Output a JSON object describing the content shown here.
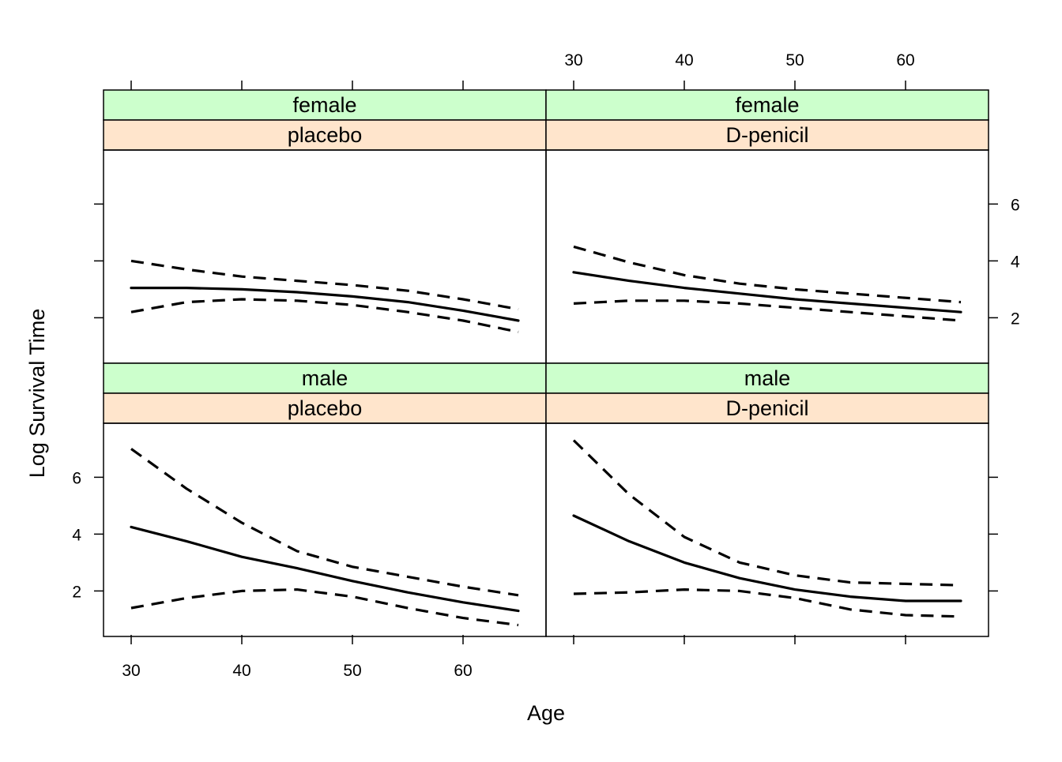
{
  "chart_data": {
    "type": "line",
    "layout": "lattice 2x2",
    "xlabel": "Age",
    "ylabel": "Log Survival Time",
    "xlim": [
      27.5,
      67.5
    ],
    "ylim": [
      0.4,
      7.9
    ],
    "x_ticks": [
      30,
      40,
      50,
      60
    ],
    "y_ticks": [
      2,
      4,
      6
    ],
    "colors": {
      "strip_sex": "#ccffcc",
      "strip_drug": "#ffe5cc",
      "line": "#000000",
      "frame": "#000000"
    },
    "panels": [
      {
        "sex": "female",
        "drug": "placebo",
        "series": [
          {
            "style": "solid",
            "x": [
              30,
              35,
              40,
              45,
              50,
              55,
              60,
              65
            ],
            "y": [
              3.05,
              3.05,
              3.0,
              2.9,
              2.75,
              2.55,
              2.25,
              1.9
            ]
          },
          {
            "style": "dashed",
            "x": [
              30,
              35,
              40,
              45,
              50,
              55,
              60,
              65
            ],
            "y": [
              4.0,
              3.7,
              3.45,
              3.3,
              3.15,
              2.95,
              2.65,
              2.3
            ]
          },
          {
            "style": "dashed",
            "x": [
              30,
              35,
              40,
              45,
              50,
              55,
              60,
              65
            ],
            "y": [
              2.2,
              2.55,
              2.65,
              2.6,
              2.45,
              2.2,
              1.9,
              1.5
            ]
          }
        ]
      },
      {
        "sex": "female",
        "drug": "D-penicil",
        "series": [
          {
            "style": "solid",
            "x": [
              30,
              35,
              40,
              45,
              50,
              55,
              60,
              65
            ],
            "y": [
              3.6,
              3.3,
              3.05,
              2.85,
              2.65,
              2.5,
              2.35,
              2.2
            ]
          },
          {
            "style": "dashed",
            "x": [
              30,
              35,
              40,
              45,
              50,
              55,
              60,
              65
            ],
            "y": [
              4.5,
              3.95,
              3.5,
              3.2,
              3.0,
              2.85,
              2.7,
              2.55
            ]
          },
          {
            "style": "dashed",
            "x": [
              30,
              35,
              40,
              45,
              50,
              55,
              60,
              65
            ],
            "y": [
              2.5,
              2.6,
              2.6,
              2.5,
              2.35,
              2.2,
              2.05,
              1.9
            ]
          }
        ]
      },
      {
        "sex": "male",
        "drug": "placebo",
        "series": [
          {
            "style": "solid",
            "x": [
              30,
              35,
              40,
              45,
              50,
              55,
              60,
              65
            ],
            "y": [
              4.25,
              3.75,
              3.2,
              2.8,
              2.35,
              1.95,
              1.6,
              1.3
            ]
          },
          {
            "style": "dashed",
            "x": [
              30,
              35,
              40,
              45,
              50,
              55,
              60,
              65
            ],
            "y": [
              7.0,
              5.6,
              4.4,
              3.4,
              2.85,
              2.5,
              2.15,
              1.85
            ]
          },
          {
            "style": "dashed",
            "x": [
              30,
              35,
              40,
              45,
              50,
              55,
              60,
              65
            ],
            "y": [
              1.4,
              1.75,
              2.0,
              2.05,
              1.8,
              1.4,
              1.05,
              0.8
            ]
          }
        ]
      },
      {
        "sex": "male",
        "drug": "D-penicil",
        "series": [
          {
            "style": "solid",
            "x": [
              30,
              35,
              40,
              45,
              50,
              55,
              60,
              65
            ],
            "y": [
              4.65,
              3.75,
              3.0,
              2.45,
              2.05,
              1.8,
              1.65,
              1.65
            ]
          },
          {
            "style": "dashed",
            "x": [
              30,
              35,
              40,
              45,
              50,
              55,
              60,
              65
            ],
            "y": [
              7.3,
              5.4,
              3.9,
              3.0,
              2.55,
              2.3,
              2.25,
              2.2
            ]
          },
          {
            "style": "dashed",
            "x": [
              30,
              35,
              40,
              45,
              50,
              55,
              60,
              65
            ],
            "y": [
              1.9,
              1.95,
              2.05,
              2.0,
              1.75,
              1.35,
              1.15,
              1.1
            ]
          }
        ]
      }
    ]
  }
}
